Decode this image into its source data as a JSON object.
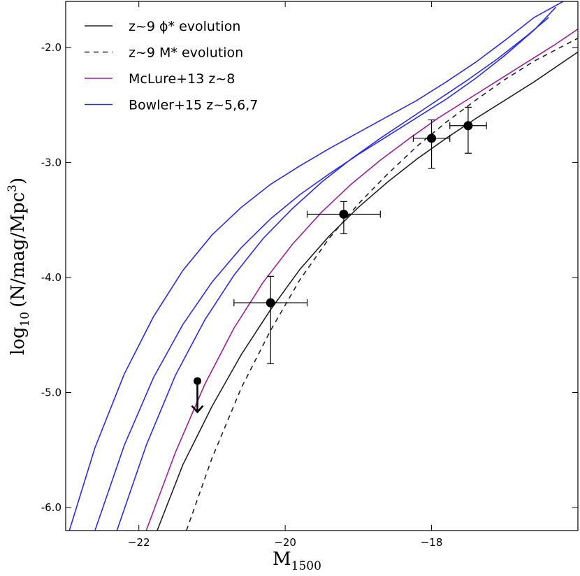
{
  "chart_data": {
    "type": "line",
    "title": "",
    "xlabel": "M",
    "xlabel_sub": "1500",
    "ylabel": "log",
    "ylabel_sub": "10",
    "ylabel_units": "(N/mag/Mpc",
    "ylabel_units_sup": "3",
    "ylabel_units_close": ")",
    "xlim": [
      -23.0,
      -16.0
    ],
    "ylim": [
      -6.2,
      -1.6
    ],
    "xticks": [
      -22,
      -20,
      -18
    ],
    "xtick_labels": [
      "−22",
      "−20",
      "−18"
    ],
    "yticks": [
      -2.0,
      -3.0,
      -4.0,
      -5.0,
      -6.0
    ],
    "ytick_labels": [
      "-2.0",
      "-3.0",
      "-4.0",
      "-5.0",
      "-6.0"
    ],
    "legend_position": "top-left",
    "legend": [
      {
        "label": "z~9 ϕ* evolution",
        "color": "#222222",
        "dash": "solid"
      },
      {
        "label": "z~9 M* evolution",
        "color": "#222222",
        "dash": "dashed"
      },
      {
        "label": "McLure+13 z~8",
        "color": "#9a1f9a",
        "dash": "solid"
      },
      {
        "label": "Bowler+15 z~5,6,7",
        "color": "#2a2aee",
        "dash": "solid"
      }
    ],
    "series": [
      {
        "name": "z~9 phi* evolution",
        "color": "#222222",
        "dash": "solid",
        "x": [
          -21.75,
          -21.4,
          -21.0,
          -20.6,
          -20.2,
          -19.8,
          -19.4,
          -19.0,
          -18.6,
          -18.2,
          -17.8,
          -17.4,
          -17.0,
          -16.6,
          -16.0
        ],
        "y": [
          -6.2,
          -5.63,
          -5.12,
          -4.67,
          -4.28,
          -3.93,
          -3.64,
          -3.39,
          -3.17,
          -2.97,
          -2.79,
          -2.62,
          -2.46,
          -2.3,
          -2.04
        ]
      },
      {
        "name": "z~9 M* evolution",
        "color": "#222222",
        "dash": "dashed",
        "x": [
          -21.35,
          -21.0,
          -20.6,
          -20.2,
          -19.8,
          -19.4,
          -19.0,
          -18.6,
          -18.2,
          -17.8,
          -17.4,
          -17.0,
          -16.6,
          -16.0
        ],
        "y": [
          -6.2,
          -5.57,
          -4.96,
          -4.46,
          -4.02,
          -3.66,
          -3.36,
          -3.1,
          -2.86,
          -2.65,
          -2.46,
          -2.28,
          -2.12,
          -1.92
        ]
      },
      {
        "name": "McLure+13 z~8",
        "color": "#9a1f9a",
        "dash": "solid",
        "x": [
          -21.9,
          -21.5,
          -21.1,
          -20.7,
          -20.3,
          -19.9,
          -19.5,
          -19.1,
          -18.7,
          -18.3,
          -17.9,
          -17.5,
          -17.1,
          -16.7,
          -16.3,
          -16.0
        ],
        "y": [
          -6.2,
          -5.52,
          -4.93,
          -4.44,
          -4.04,
          -3.71,
          -3.43,
          -3.19,
          -2.98,
          -2.79,
          -2.61,
          -2.45,
          -2.29,
          -2.13,
          -1.97,
          -1.84
        ]
      },
      {
        "name": "Bowler+15 z~7",
        "color": "#2a2aee",
        "dash": "solid",
        "x": [
          -22.3,
          -21.9,
          -21.5,
          -21.1,
          -20.7,
          -20.3,
          -19.9,
          -19.5,
          -19.1,
          -18.7,
          -18.3,
          -17.9,
          -17.5,
          -17.1,
          -16.7,
          -16.4
        ],
        "y": [
          -6.2,
          -5.46,
          -4.85,
          -4.37,
          -3.98,
          -3.66,
          -3.4,
          -3.17,
          -2.97,
          -2.79,
          -2.62,
          -2.45,
          -2.28,
          -2.1,
          -1.9,
          -1.74
        ]
      },
      {
        "name": "Bowler+15 z~6",
        "color": "#2a2aee",
        "dash": "solid",
        "x": [
          -22.6,
          -22.2,
          -21.8,
          -21.4,
          -21.0,
          -20.6,
          -20.2,
          -19.8,
          -19.4,
          -19.0,
          -18.6,
          -18.2,
          -17.8,
          -17.4,
          -17.0,
          -16.6,
          -16.3
        ],
        "y": [
          -6.2,
          -5.46,
          -4.87,
          -4.41,
          -4.04,
          -3.74,
          -3.49,
          -3.28,
          -3.1,
          -2.93,
          -2.77,
          -2.61,
          -2.45,
          -2.27,
          -2.07,
          -1.85,
          -1.65
        ]
      },
      {
        "name": "Bowler+15 z~5",
        "color": "#2a2aee",
        "dash": "solid",
        "x": [
          -22.95,
          -22.6,
          -22.2,
          -21.8,
          -21.4,
          -21.0,
          -20.6,
          -20.2,
          -19.8,
          -19.4,
          -19.0,
          -18.6,
          -18.2,
          -17.8,
          -17.4,
          -17.0,
          -16.6,
          -16.2
        ],
        "y": [
          -6.2,
          -5.48,
          -4.84,
          -4.34,
          -3.94,
          -3.63,
          -3.39,
          -3.19,
          -3.03,
          -2.88,
          -2.74,
          -2.6,
          -2.46,
          -2.3,
          -2.13,
          -1.94,
          -1.74,
          -1.6
        ]
      }
    ],
    "points": [
      {
        "x": -20.2,
        "y": -4.22,
        "xerr": 0.5,
        "yerr_low": 0.53,
        "yerr_high": 0.23
      },
      {
        "x": -19.2,
        "y": -3.45,
        "xerr": 0.5,
        "yerr_low": 0.17,
        "yerr_high": 0.11
      },
      {
        "x": -18.0,
        "y": -2.79,
        "xerr": 0.25,
        "yerr_low": 0.26,
        "yerr_high": 0.16
      },
      {
        "x": -17.5,
        "y": -2.68,
        "xerr": 0.25,
        "yerr_low": 0.24,
        "yerr_high": 0.16
      }
    ],
    "upper_limit": {
      "x": -21.2,
      "y": -4.9,
      "arrow_length": 0.27
    }
  }
}
